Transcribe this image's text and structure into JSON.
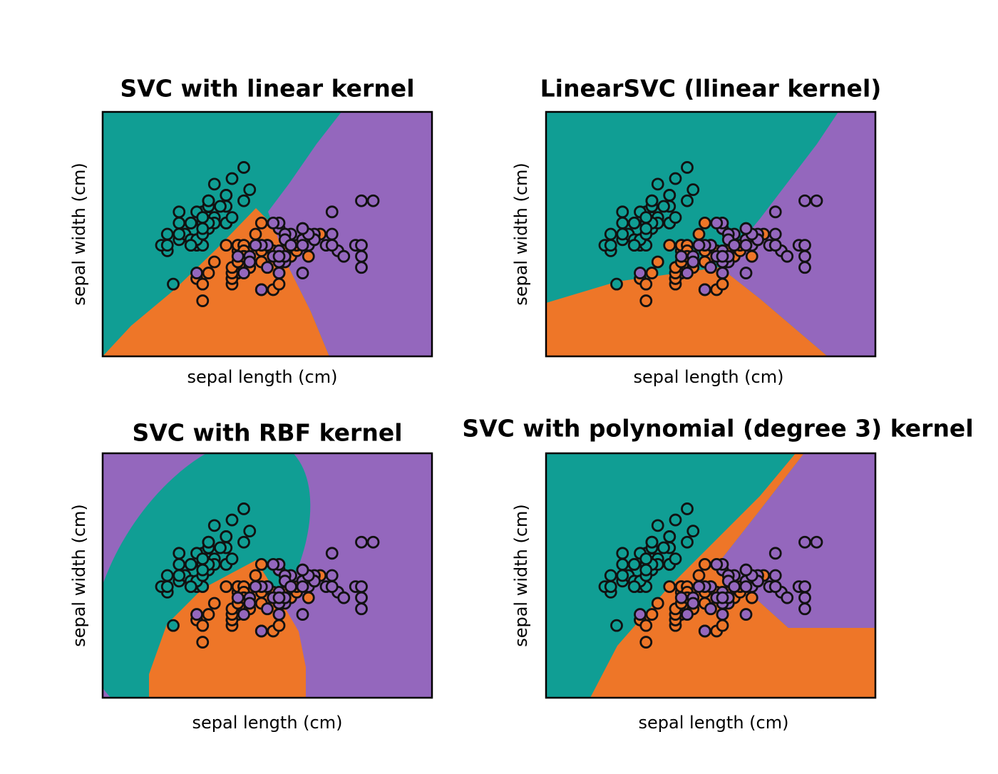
{
  "chart_data": {
    "type": "scatter",
    "xlabel": "sepal length (cm)",
    "ylabel": "sepal width (cm)",
    "xlim": [
      3.3,
      8.9
    ],
    "ylim": [
      1.0,
      5.4
    ],
    "panels": [
      {
        "title": "SVC with linear kernel"
      },
      {
        "title": "LinearSVC (llinear kernel)"
      },
      {
        "title": "SVC with RBF kernel"
      },
      {
        "title": "SVC with polynomial (degree 3) kernel"
      }
    ],
    "series": [
      {
        "color": "#109e94",
        "x": [
          5.1,
          4.9,
          4.7,
          4.6,
          5.0,
          5.4,
          4.6,
          5.0,
          4.4,
          4.9,
          5.4,
          4.8,
          4.8,
          4.3,
          5.8,
          5.7,
          5.4,
          5.1,
          5.7,
          5.1,
          5.4,
          5.1,
          4.6,
          5.1,
          4.8,
          5.0,
          5.0,
          5.2,
          5.2,
          4.7,
          4.8,
          5.4,
          5.2,
          5.5,
          4.9,
          5.0,
          5.5,
          4.9,
          4.4,
          5.1,
          5.0,
          4.5,
          4.4,
          5.0,
          5.1,
          4.8,
          5.1,
          4.6,
          5.3,
          5.0
        ],
        "y": [
          3.5,
          3.0,
          3.2,
          3.1,
          3.6,
          3.9,
          3.4,
          3.4,
          2.9,
          3.1,
          3.7,
          3.4,
          3.0,
          3.0,
          4.0,
          4.4,
          3.9,
          3.5,
          3.8,
          3.8,
          3.4,
          3.7,
          3.6,
          3.3,
          3.4,
          3.0,
          3.4,
          3.5,
          3.4,
          3.2,
          3.1,
          3.4,
          4.1,
          4.2,
          3.1,
          3.2,
          3.5,
          3.6,
          3.0,
          3.4,
          3.5,
          2.3,
          3.2,
          3.5,
          3.8,
          3.0,
          3.8,
          3.2,
          3.7,
          3.3
        ]
      },
      {
        "color": "#ee7628",
        "x": [
          7.0,
          6.4,
          6.9,
          5.5,
          6.5,
          5.7,
          6.3,
          4.9,
          6.6,
          5.2,
          5.0,
          5.9,
          6.0,
          6.1,
          5.6,
          6.7,
          5.6,
          5.8,
          6.2,
          5.6,
          5.9,
          6.1,
          6.3,
          6.1,
          6.4,
          6.6,
          6.8,
          6.7,
          6.0,
          5.7,
          5.5,
          5.5,
          5.8,
          6.0,
          5.4,
          6.0,
          6.7,
          6.3,
          5.6,
          5.5,
          5.5,
          6.1,
          5.8,
          5.0,
          5.6,
          5.7,
          5.7,
          6.2,
          5.1,
          5.7
        ],
        "y": [
          3.2,
          3.2,
          3.1,
          2.3,
          2.8,
          2.8,
          3.3,
          2.4,
          2.9,
          2.7,
          2.0,
          3.0,
          2.2,
          2.9,
          2.9,
          3.1,
          3.0,
          2.7,
          2.2,
          2.5,
          3.2,
          2.8,
          2.5,
          2.8,
          2.9,
          3.0,
          2.8,
          3.0,
          2.9,
          2.6,
          2.4,
          2.4,
          2.7,
          2.7,
          3.0,
          3.4,
          3.1,
          2.3,
          3.0,
          2.5,
          2.6,
          3.0,
          2.6,
          2.3,
          2.7,
          3.0,
          2.9,
          2.9,
          2.5,
          2.8
        ]
      },
      {
        "color": "#9467bd",
        "x": [
          6.3,
          5.8,
          7.1,
          6.3,
          6.5,
          7.6,
          4.9,
          7.3,
          6.7,
          7.2,
          6.5,
          6.4,
          6.8,
          5.7,
          5.8,
          6.4,
          6.5,
          7.7,
          7.7,
          6.0,
          6.9,
          5.6,
          7.7,
          6.3,
          6.7,
          7.2,
          6.2,
          6.1,
          6.4,
          7.2,
          7.4,
          7.9,
          6.4,
          6.3,
          6.1,
          7.7,
          6.3,
          6.4,
          6.0,
          6.9,
          6.7,
          6.9,
          5.8,
          6.8,
          6.7,
          6.7,
          6.3,
          6.5,
          6.2,
          5.9
        ],
        "y": [
          3.3,
          2.7,
          3.0,
          2.9,
          3.0,
          3.0,
          2.5,
          2.9,
          2.5,
          3.6,
          3.2,
          2.7,
          3.0,
          2.5,
          2.8,
          3.2,
          3.0,
          3.8,
          2.6,
          2.2,
          3.2,
          2.8,
          2.8,
          2.7,
          3.3,
          3.2,
          2.8,
          3.0,
          2.8,
          3.0,
          2.8,
          3.8,
          2.8,
          2.8,
          2.6,
          3.0,
          3.4,
          3.1,
          3.0,
          3.1,
          3.1,
          3.1,
          2.7,
          3.2,
          3.3,
          3.0,
          2.5,
          3.0,
          3.4,
          3.0
        ]
      }
    ]
  }
}
